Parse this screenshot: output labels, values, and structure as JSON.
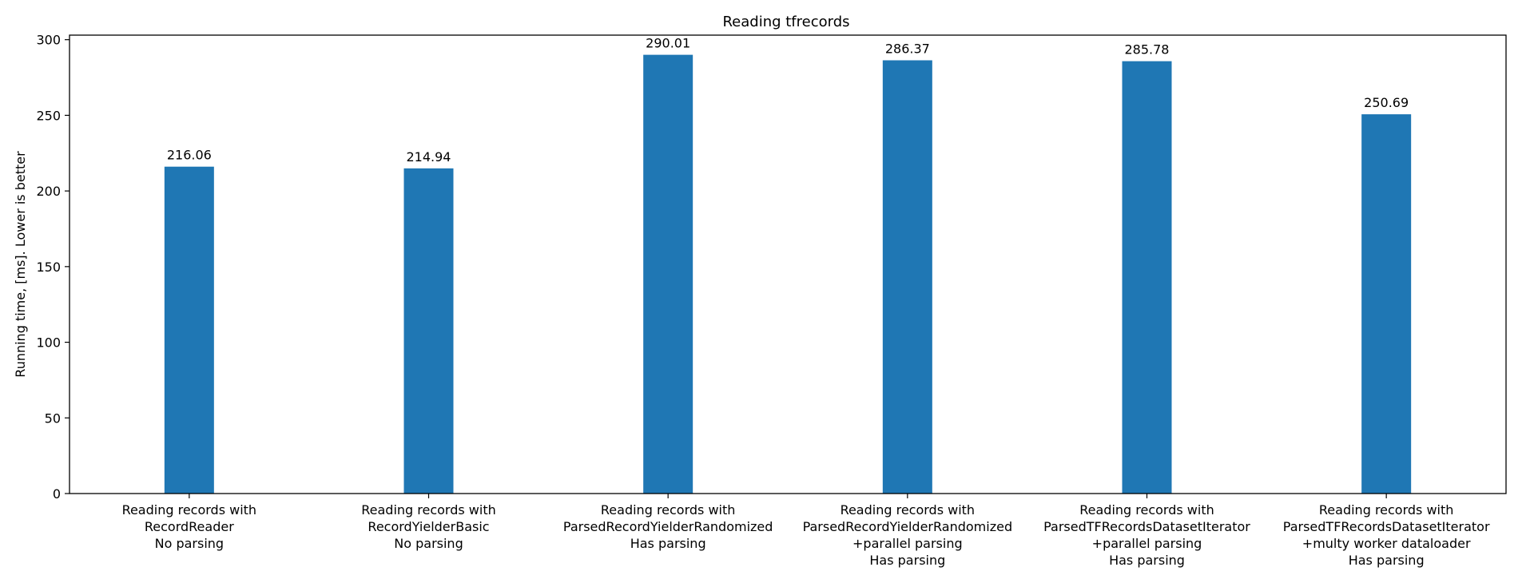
{
  "chart_data": {
    "type": "bar",
    "title": "Reading tfrecords",
    "xlabel": "",
    "ylabel": "Running time, [ms]. Lower is better",
    "ylim": [
      0,
      303
    ],
    "yticks": [
      0,
      50,
      100,
      150,
      200,
      250,
      300
    ],
    "grid": false,
    "bar_color": "#1f77b4",
    "categories": [
      [
        "Reading records with",
        "RecordReader",
        "No parsing"
      ],
      [
        "Reading records with",
        "RecordYielderBasic",
        "No parsing"
      ],
      [
        "Reading records with",
        "ParsedRecordYielderRandomized",
        "Has parsing"
      ],
      [
        "Reading records with",
        "ParsedRecordYielderRandomized",
        "+parallel parsing",
        "Has parsing"
      ],
      [
        "Reading records with",
        "ParsedTFRecordsDatasetIterator",
        "+parallel parsing",
        "Has parsing"
      ],
      [
        "Reading records with",
        "ParsedTFRecordsDatasetIterator",
        "+multy worker dataloader",
        "Has parsing"
      ]
    ],
    "values": [
      216.06,
      214.94,
      290.01,
      286.37,
      285.78,
      250.69
    ],
    "data_labels": [
      "216.06",
      "214.94",
      "290.01",
      "286.37",
      "285.78",
      "250.69"
    ]
  }
}
